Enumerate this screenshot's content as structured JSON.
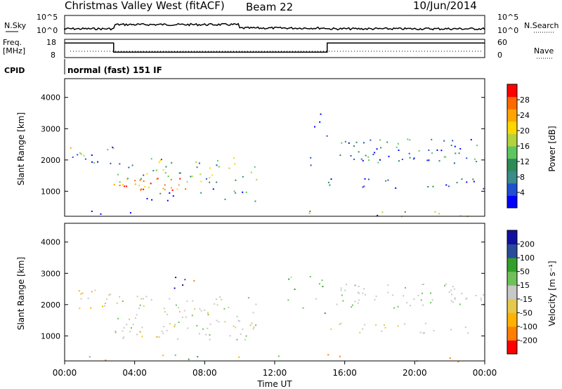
{
  "header": {
    "station": "Christmas Valley West (fitACF)",
    "beam": "Beam 22",
    "date": "10/Jun/2014"
  },
  "panels": {
    "nsky": {
      "label": "N.Sky",
      "right_label": "N.Search",
      "ticks": [
        "10^5",
        "10^0"
      ]
    },
    "freq": {
      "label_top": "Freq.",
      "label_bottom": "[MHz]",
      "left_ticks": [
        "18",
        "8"
      ],
      "right_ticks": [
        "60",
        "0"
      ],
      "right_label": "Nave"
    },
    "cpid": {
      "label": "CPID",
      "mode": "normal (fast) 151 IF"
    },
    "power": {
      "ylabel": "Slant Range [km]",
      "yticks": [
        "4000",
        "3000",
        "2000",
        "1000"
      ],
      "cbar_label": "Power [dB]",
      "cbar_ticks": [
        "28",
        "24",
        "20",
        "16",
        "12",
        "8",
        "4"
      ]
    },
    "velocity": {
      "ylabel": "Slant Range [km]",
      "yticks": [
        "4000",
        "3000",
        "2000",
        "1000"
      ],
      "cbar_label": "Velocity [m s⁻¹]",
      "cbar_ticks": [
        "200",
        "100",
        "50",
        "15",
        "-15",
        "-50",
        "-100",
        "-200"
      ]
    }
  },
  "xaxis": {
    "label": "Time UT",
    "ticks": [
      "00:00",
      "04:00",
      "08:00",
      "12:00",
      "16:00",
      "20:00",
      "00:00"
    ]
  },
  "colors": {
    "power_scale": [
      "#0000ff",
      "#2050d0",
      "#3c8a8a",
      "#2e8b57",
      "#5ec65e",
      "#b4d23c",
      "#ffd700",
      "#ffa500",
      "#ff6a00",
      "#ff0000"
    ],
    "velocity_scale": [
      "#ff0000",
      "#ff7f00",
      "#ffb300",
      "#e6c84a",
      "#c8c8c8",
      "#70c05a",
      "#33a02c",
      "#2a4b9b",
      "#1010a0"
    ]
  },
  "chart_data": {
    "type": "heatmap",
    "title": "Christmas Valley West (fitACF) Beam 22 10/Jun/2014",
    "xlabel": "Time UT",
    "ylabel": "Slant Range [km]",
    "xlim": [
      0,
      24
    ],
    "ylim": [
      200,
      4600
    ],
    "cpid_mode": "normal (fast) 151 IF",
    "frequency_mhz": {
      "x": [
        0,
        2.8,
        2.8,
        15,
        15,
        24
      ],
      "y": [
        16,
        16,
        11,
        11,
        16,
        16
      ]
    },
    "power_features": [
      {
        "time": [
          0.5,
          2.5
        ],
        "range_km": [
          1900,
          2500
        ],
        "power_db": 18
      },
      {
        "time": [
          2.8,
          7.5
        ],
        "range_km": [
          1000,
          1400
        ],
        "power_db": 28
      },
      {
        "time": [
          7.5,
          11
        ],
        "range_km": [
          1300,
          2200
        ],
        "power_db": 20
      },
      {
        "time": [
          15.5,
          24
        ],
        "range_km": [
          1900,
          2700
        ],
        "power_db": 12
      }
    ],
    "power_colorbar": [
      4,
      8,
      12,
      16,
      20,
      24,
      28
    ],
    "velocity_colorbar": [
      -200,
      -100,
      -50,
      -15,
      15,
      50,
      100,
      200
    ]
  }
}
